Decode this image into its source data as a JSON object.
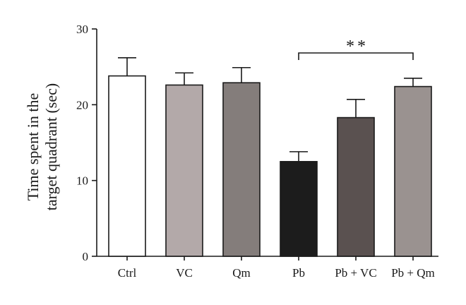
{
  "chart_data": {
    "type": "bar",
    "categories": [
      "Ctrl",
      "VC",
      "Qm",
      "Pb",
      "Pb + VC",
      "Pb + Qm"
    ],
    "values": [
      23.8,
      22.6,
      22.9,
      12.5,
      18.3,
      22.4
    ],
    "errors": [
      2.4,
      1.6,
      2.0,
      1.3,
      2.4,
      1.1
    ],
    "colors": [
      "#ffffff",
      "#b3a9a9",
      "#847d7b",
      "#1c1c1c",
      "#5a5150",
      "#9a9290"
    ],
    "title": "",
    "xlabel": "",
    "ylabel_lines": [
      "Time spent in the",
      "target quadrant (sec)"
    ],
    "ylim": [
      0,
      30
    ],
    "yticks": [
      0,
      10,
      20,
      30
    ],
    "grid": false,
    "significance": {
      "from": "Pb",
      "to": "Pb + Qm",
      "label": "**"
    }
  }
}
